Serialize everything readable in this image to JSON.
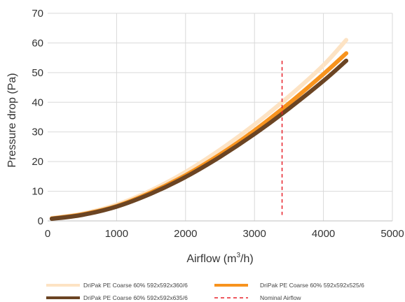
{
  "chart_data": {
    "type": "line",
    "xlabel": "Airflow (m",
    "xlabel_sup": "3",
    "xlabel_end": "/h)",
    "ylabel": "Pressure drop (Pa)",
    "xlim": [
      0,
      5000
    ],
    "ylim": [
      0,
      70
    ],
    "xticks": [
      "0",
      "1000",
      "2000",
      "3000",
      "4000",
      "5000"
    ],
    "yticks": [
      "0",
      "10",
      "20",
      "30",
      "40",
      "50",
      "60",
      "70"
    ],
    "grid": true,
    "legend_position": "bottom",
    "series": [
      {
        "name": "DriPak PE Coarse 60% 592x592x360/6",
        "color": "#fde3c4",
        "x": [
          60,
          500,
          1000,
          1500,
          2000,
          2500,
          3000,
          3500,
          4000,
          4330
        ],
        "y": [
          1.0,
          2.4,
          5.5,
          10.3,
          16.5,
          24.0,
          32.5,
          42.0,
          52.5,
          61.0
        ]
      },
      {
        "name": "DriPak PE Coarse 60% 592x592x525/6",
        "color": "#f7931e",
        "x": [
          60,
          500,
          1000,
          1500,
          2000,
          2500,
          3000,
          3500,
          4000,
          4330
        ],
        "y": [
          0.8,
          2.2,
          5.0,
          9.6,
          15.4,
          22.4,
          30.5,
          39.6,
          49.5,
          56.5
        ]
      },
      {
        "name": "DriPak PE Coarse 60% 592x592x635/6",
        "color": "#6b4423",
        "x": [
          60,
          500,
          1000,
          1500,
          2000,
          2500,
          3000,
          3500,
          4000,
          4330
        ],
        "y": [
          0.7,
          2.0,
          4.8,
          9.2,
          14.8,
          21.6,
          29.3,
          37.9,
          47.2,
          54.0
        ]
      }
    ],
    "reference_line": {
      "name": "Nominal Airflow",
      "color": "#e8202a",
      "x": 3400,
      "y_range": [
        2,
        54
      ]
    }
  }
}
